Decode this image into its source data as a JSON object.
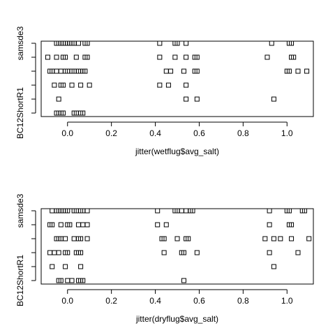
{
  "chart_data": [
    {
      "type": "scatter",
      "title": "",
      "xlabel": "jitter(wetflug$avg_salt)",
      "ylabel": "",
      "xlim": [
        -0.12,
        1.12
      ],
      "x_ticks": [
        "0.0",
        "0.2",
        "0.4",
        "0.6",
        "0.8",
        "1.0"
      ],
      "x_tick_values": [
        0.0,
        0.2,
        0.4,
        0.6,
        0.8,
        1.0
      ],
      "y_categories": [
        "BC12ShortR1",
        "",
        "",
        "",
        "",
        "samsde3"
      ],
      "y_tick_labels_shown": [
        "BC12ShortR1",
        "samsde3"
      ],
      "grid": false,
      "marker": "open-square",
      "series": [
        {
          "category_index": 0,
          "x": [
            -0.05,
            -0.04,
            -0.03,
            -0.02,
            0.03,
            0.04,
            0.06,
            0.07
          ]
        },
        {
          "category_index": 1,
          "x": [
            -0.04,
            0.54,
            0.59,
            0.94
          ]
        },
        {
          "category_index": 2,
          "x": [
            -0.06,
            -0.03,
            -0.02,
            0.02,
            0.06,
            0.1,
            0.42,
            0.46,
            0.54
          ]
        },
        {
          "category_index": 3,
          "x": [
            -0.08,
            -0.07,
            -0.05,
            -0.03,
            -0.01,
            0.0,
            0.02,
            0.03,
            0.05,
            0.06,
            0.07,
            0.08,
            0.45,
            0.47,
            0.53,
            0.58,
            0.59,
            1.0,
            1.01,
            1.05,
            1.09
          ]
        },
        {
          "category_index": 4,
          "x": [
            -0.09,
            -0.05,
            -0.02,
            -0.01,
            0.04,
            0.08,
            0.09,
            0.42,
            0.49,
            0.54,
            0.58,
            0.59,
            0.91,
            1.02,
            1.03
          ]
        },
        {
          "category_index": 5,
          "x": [
            -0.05,
            -0.04,
            -0.03,
            -0.02,
            -0.01,
            0.0,
            0.01,
            0.02,
            0.03,
            0.05,
            0.08,
            0.09,
            0.42,
            0.49,
            0.5,
            0.54,
            0.93,
            1.01,
            1.02
          ]
        }
      ]
    },
    {
      "type": "scatter",
      "title": "",
      "xlabel": "jitter(dryflug$avg_salt)",
      "ylabel": "",
      "xlim": [
        -0.12,
        1.12
      ],
      "x_ticks": [
        "0.0",
        "0.2",
        "0.4",
        "0.6",
        "0.8",
        "1.0"
      ],
      "x_tick_values": [
        0.0,
        0.2,
        0.4,
        0.6,
        0.8,
        1.0
      ],
      "y_categories": [
        "BC12ShortR1",
        "",
        "",
        "",
        "",
        "samsde3"
      ],
      "y_tick_labels_shown": [
        "BC12ShortR1",
        "samsde3"
      ],
      "grid": false,
      "marker": "open-square",
      "series": [
        {
          "category_index": 0,
          "x": [
            -0.04,
            -0.03,
            0.0,
            0.02,
            0.05,
            0.06,
            0.07,
            0.53
          ]
        },
        {
          "category_index": 1,
          "x": [
            -0.07,
            -0.01,
            0.06,
            0.94
          ]
        },
        {
          "category_index": 2,
          "x": [
            -0.08,
            -0.06,
            -0.04,
            -0.01,
            0.0,
            0.04,
            0.05,
            0.06,
            0.44,
            0.52,
            0.53,
            0.59,
            0.92,
            1.05
          ]
        },
        {
          "category_index": 3,
          "x": [
            -0.05,
            -0.04,
            -0.03,
            -0.01,
            0.03,
            0.05,
            0.06,
            0.09,
            0.43,
            0.44,
            0.5,
            0.54,
            0.55,
            0.9,
            0.94,
            0.97,
            1.02,
            1.1
          ]
        },
        {
          "category_index": 4,
          "x": [
            -0.08,
            -0.07,
            -0.03,
            0.0,
            0.01,
            0.05,
            0.07,
            0.09,
            0.41,
            0.45,
            0.92,
            1.01,
            1.02
          ]
        },
        {
          "category_index": 5,
          "x": [
            -0.07,
            -0.05,
            -0.04,
            -0.03,
            -0.02,
            -0.01,
            0.0,
            0.03,
            0.04,
            0.06,
            0.07,
            0.09,
            0.41,
            0.49,
            0.5,
            0.52,
            0.54,
            0.56,
            0.57,
            0.92,
            1.0,
            1.01,
            1.07,
            1.08
          ]
        }
      ]
    }
  ]
}
